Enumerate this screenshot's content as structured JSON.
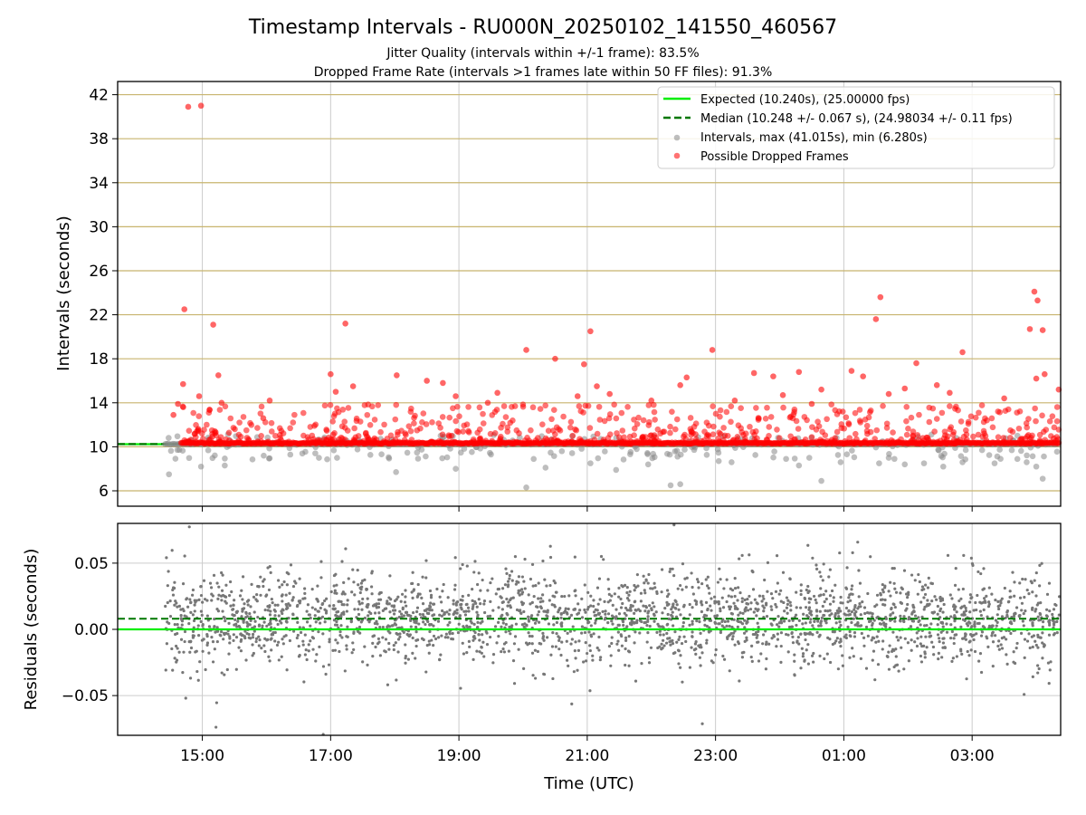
{
  "chart_data": {
    "title": "Timestamp Intervals - RU000N_20250102_141550_460567",
    "subtitle_lines": [
      "Jitter Quality (intervals within +/-1 frame): 83.5%",
      "Dropped Frame Rate (intervals >1 frames late within 50 FF files): 91.3%"
    ],
    "xlabel": "Time (UTC)",
    "x_ticks": [
      "15:00",
      "17:00",
      "19:00",
      "21:00",
      "23:00",
      "01:00",
      "03:00"
    ],
    "x_tick_hours": [
      15,
      17,
      19,
      21,
      23,
      25,
      27
    ],
    "xlim_hours": [
      13.68,
      28.38
    ],
    "data_start_hour": 14.42,
    "dropped_start_hour": 14.67,
    "colors": {
      "expected": "#00ee00",
      "median": "#007700",
      "intervals": "#888888",
      "dropped": "#ff0000",
      "hgrid": "#c8b46e",
      "vgrid": "#cccccc"
    },
    "panels": [
      {
        "type": "scatter",
        "ylabel": "Intervals (seconds)",
        "ylim": [
          4.6,
          43.2
        ],
        "y_ticks": [
          "6",
          "10",
          "14",
          "18",
          "22",
          "26",
          "30",
          "34",
          "38",
          "42"
        ],
        "y_tick_values": [
          6,
          10,
          14,
          18,
          22,
          26,
          30,
          34,
          38,
          42
        ],
        "grid_horizontal_color": "hgrid",
        "expected_interval": 10.24,
        "median_interval": 10.248,
        "legend_position": "upper right",
        "legend": [
          {
            "label": "Expected (10.240s), (25.00000 fps)",
            "style": "solid-line",
            "color": "#00ee00"
          },
          {
            "label": "Median (10.248 +/- 0.067 s), (24.98034 +/- 0.11 fps)",
            "style": "dashed-line",
            "color": "#007700"
          },
          {
            "label": "Intervals, max (41.015s), min (6.280s)",
            "style": "marker",
            "color": "#888888"
          },
          {
            "label": "Possible Dropped Frames",
            "style": "marker",
            "color": "#ff0000"
          }
        ],
        "intervals_max": 41.015,
        "intervals_min": 6.28,
        "dropped_points": [
          [
            14.78,
            40.9
          ],
          [
            14.98,
            41.0
          ],
          [
            14.72,
            22.5
          ],
          [
            15.17,
            21.1
          ],
          [
            15.25,
            16.5
          ],
          [
            14.95,
            14.6
          ],
          [
            15.3,
            14.0
          ],
          [
            14.55,
            12.9
          ],
          [
            14.62,
            13.9
          ],
          [
            14.7,
            15.7
          ],
          [
            17.23,
            21.2
          ],
          [
            17.0,
            16.6
          ],
          [
            17.08,
            15.0
          ],
          [
            17.35,
            15.5
          ],
          [
            18.03,
            16.5
          ],
          [
            18.5,
            16.0
          ],
          [
            18.75,
            15.8
          ],
          [
            18.95,
            14.6
          ],
          [
            20.05,
            18.8
          ],
          [
            20.5,
            18.0
          ],
          [
            20.95,
            17.5
          ],
          [
            21.05,
            20.5
          ],
          [
            21.15,
            15.5
          ],
          [
            21.35,
            14.8
          ],
          [
            22.0,
            14.2
          ],
          [
            22.55,
            16.3
          ],
          [
            22.95,
            18.8
          ],
          [
            23.6,
            16.7
          ],
          [
            23.9,
            16.4
          ],
          [
            24.3,
            16.8
          ],
          [
            24.65,
            15.2
          ],
          [
            25.12,
            16.9
          ],
          [
            25.3,
            16.4
          ],
          [
            25.5,
            21.6
          ],
          [
            25.57,
            23.6
          ],
          [
            26.13,
            17.6
          ],
          [
            26.85,
            18.6
          ],
          [
            27.5,
            14.4
          ],
          [
            27.9,
            20.7
          ],
          [
            27.97,
            24.1
          ],
          [
            28.02,
            23.3
          ],
          [
            28.1,
            20.6
          ],
          [
            28.0,
            16.2
          ],
          [
            28.13,
            16.6
          ],
          [
            28.35,
            15.2
          ],
          [
            26.45,
            15.6
          ],
          [
            26.65,
            14.9
          ],
          [
            25.95,
            15.3
          ],
          [
            25.7,
            14.8
          ],
          [
            24.5,
            13.9
          ],
          [
            22.45,
            15.6
          ],
          [
            23.3,
            14.2
          ],
          [
            19.6,
            14.9
          ],
          [
            20.85,
            14.6
          ],
          [
            16.05,
            14.2
          ],
          [
            15.95,
            12.6
          ],
          [
            19.45,
            14.0
          ],
          [
            24.05,
            14.7
          ]
        ],
        "gray_points": [
          [
            14.48,
            7.5
          ],
          [
            14.98,
            8.2
          ],
          [
            15.35,
            8.3
          ],
          [
            18.02,
            7.7
          ],
          [
            18.95,
            8.0
          ],
          [
            20.05,
            6.3
          ],
          [
            20.35,
            8.1
          ],
          [
            21.05,
            8.5
          ],
          [
            21.45,
            7.9
          ],
          [
            21.95,
            8.4
          ],
          [
            22.3,
            6.5
          ],
          [
            22.45,
            6.6
          ],
          [
            23.25,
            8.6
          ],
          [
            24.3,
            8.3
          ],
          [
            24.95,
            8.6
          ],
          [
            25.55,
            8.5
          ],
          [
            25.7,
            9.0
          ],
          [
            25.95,
            8.4
          ],
          [
            26.25,
            8.5
          ],
          [
            26.55,
            8.2
          ],
          [
            26.85,
            8.6
          ],
          [
            27.35,
            8.5
          ],
          [
            27.85,
            8.6
          ],
          [
            28.1,
            7.1
          ],
          [
            28.0,
            8.2
          ],
          [
            24.1,
            8.9
          ],
          [
            24.65,
            6.9
          ],
          [
            19.5,
            9.3
          ],
          [
            17.1,
            9.0
          ],
          [
            23.05,
            8.7
          ]
        ]
      },
      {
        "type": "scatter",
        "ylabel": "Residuals (seconds)",
        "ylim": [
          -0.08,
          0.08
        ],
        "y_ticks": [
          "−0.05",
          "0.00",
          "0.05"
        ],
        "y_tick_values": [
          -0.05,
          0.0,
          0.05
        ],
        "expected_residual": 0.0,
        "median_residual": 0.008
      }
    ]
  }
}
